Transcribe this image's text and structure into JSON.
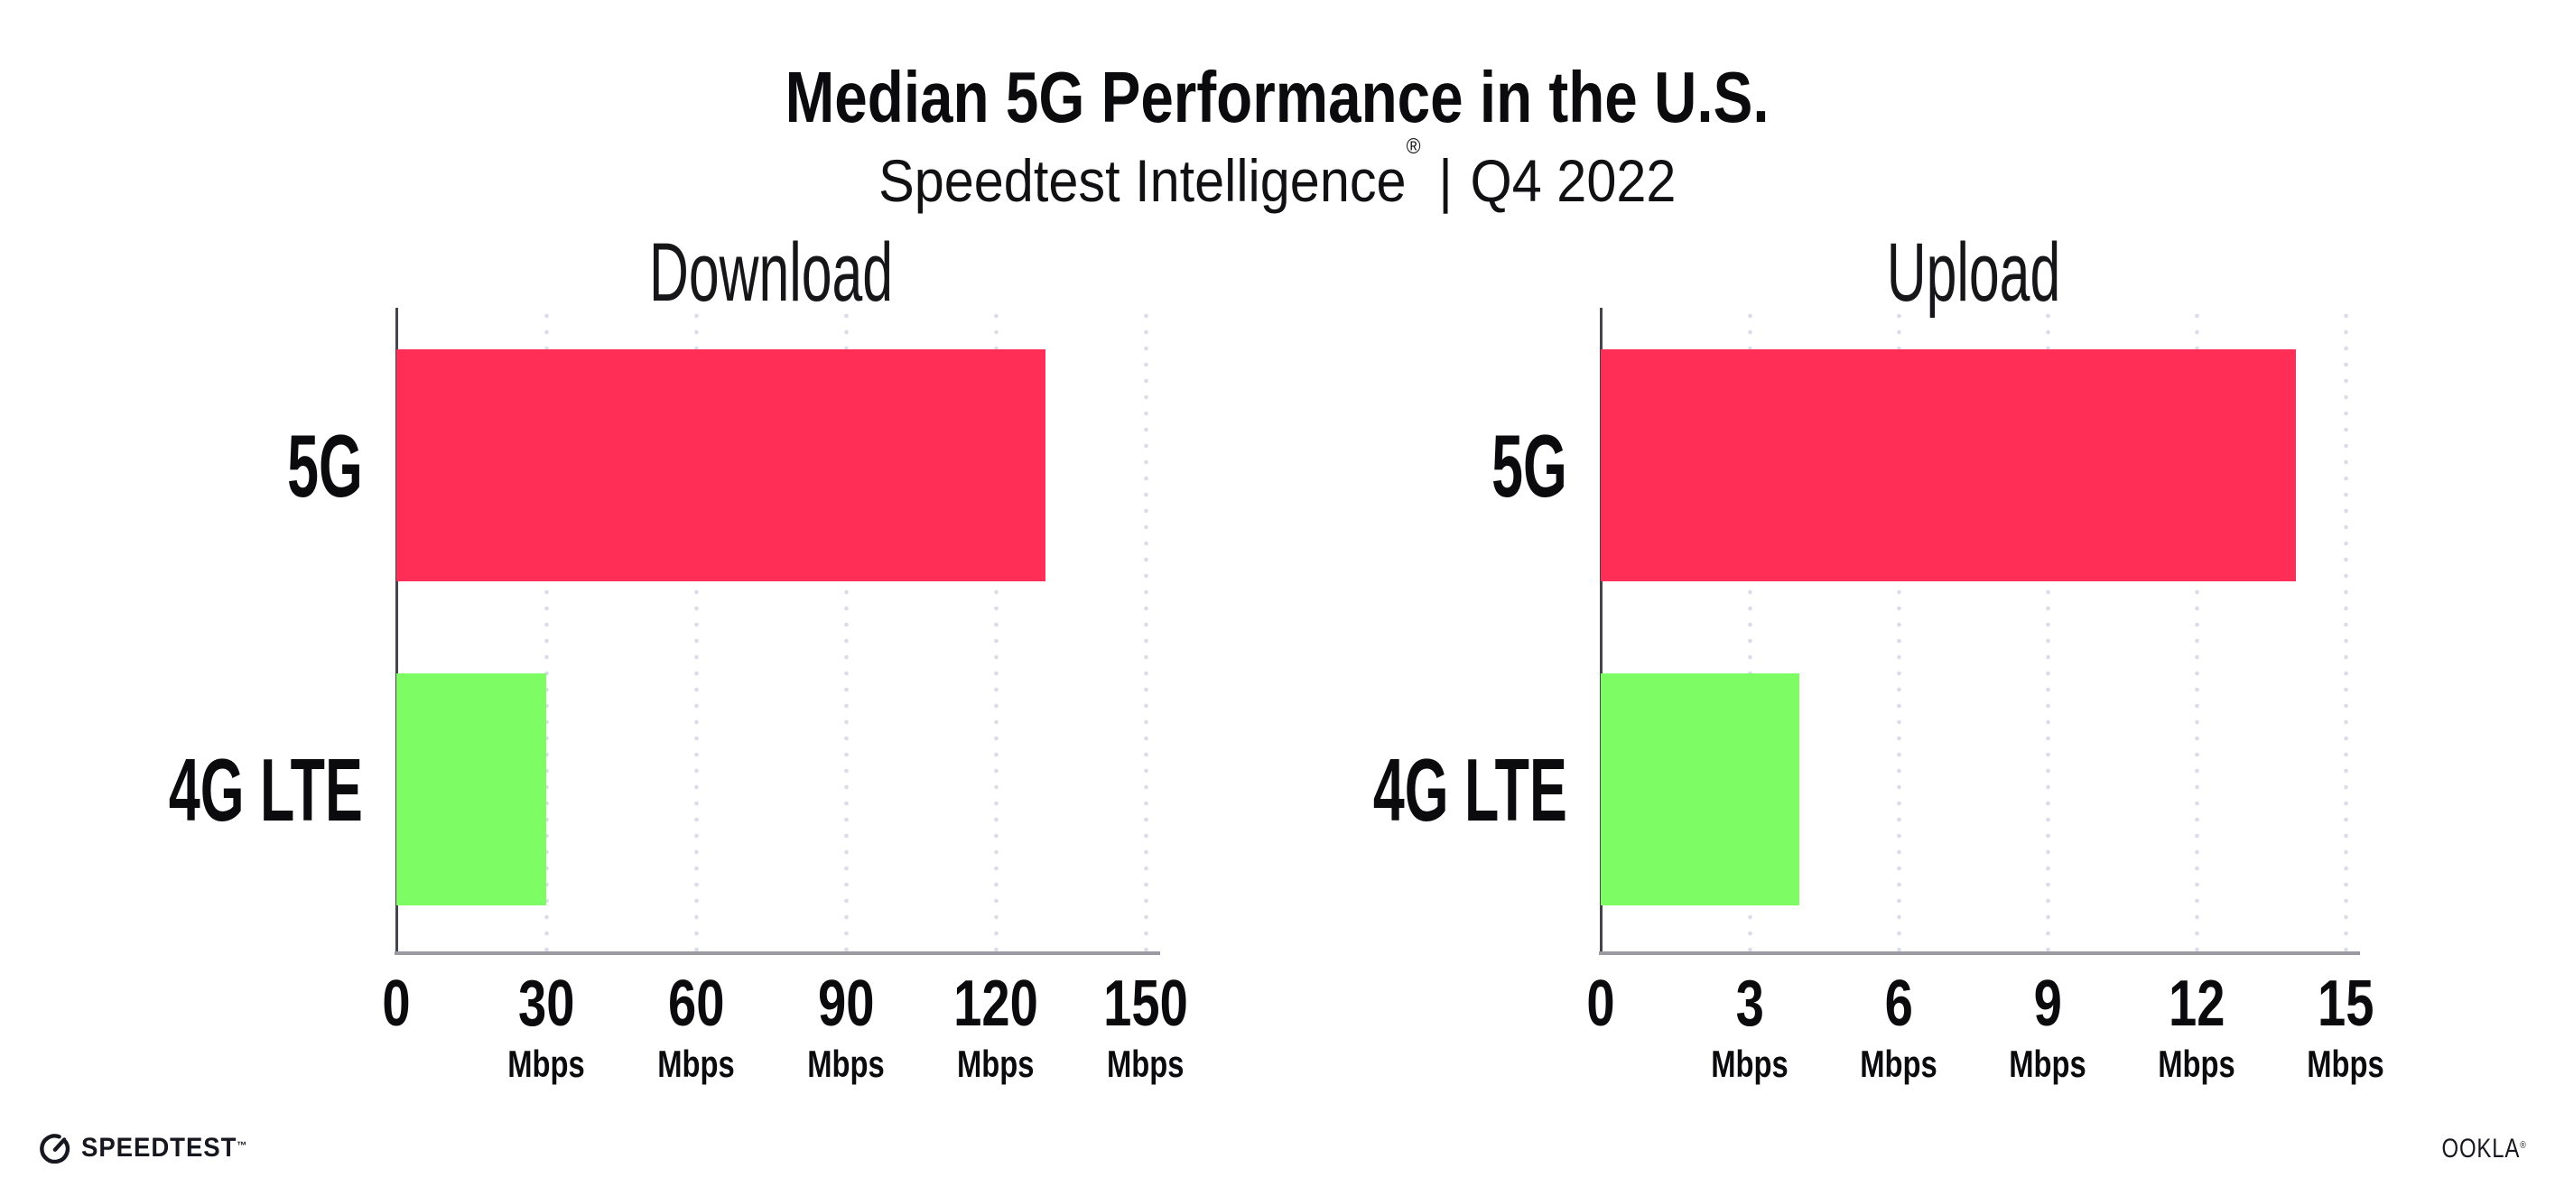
{
  "header": {
    "title": "Median 5G Performance in the U.S.",
    "subtitle_product": "Speedtest Intelligence",
    "subtitle_reg": "®",
    "subtitle_separator": "|",
    "subtitle_period": "Q4 2022"
  },
  "colors": {
    "bar_5g": "#ff2e56",
    "bar_4g_lte": "#7dfc64",
    "gridline": "#dcdce8",
    "x_axis_line": "#9a9aa2",
    "y_axis_line": "#44444c",
    "text": "#0b0b0e"
  },
  "chart_data": [
    {
      "type": "bar",
      "orientation": "horizontal",
      "title": "Download",
      "categories": [
        "5G",
        "4G LTE"
      ],
      "values": [
        130,
        30
      ],
      "unit": "Mbps",
      "xlim": [
        0,
        150
      ],
      "xticks": [
        0,
        30,
        60,
        90,
        120,
        150
      ],
      "bar_colors": [
        "#ff2e56",
        "#7dfc64"
      ],
      "grid": "vertical-dotted",
      "legend": "none"
    },
    {
      "type": "bar",
      "orientation": "horizontal",
      "title": "Upload",
      "categories": [
        "5G",
        "4G LTE"
      ],
      "values": [
        14,
        4
      ],
      "unit": "Mbps",
      "xlim": [
        0,
        15
      ],
      "xticks": [
        0,
        3,
        6,
        9,
        12,
        15
      ],
      "bar_colors": [
        "#ff2e56",
        "#7dfc64"
      ],
      "grid": "vertical-dotted",
      "legend": "none"
    }
  ],
  "footer": {
    "speedtest_wordmark": "SPEEDTEST",
    "speedtest_tm": "™",
    "ookla_wordmark": "OOKLA",
    "ookla_reg": "®"
  }
}
